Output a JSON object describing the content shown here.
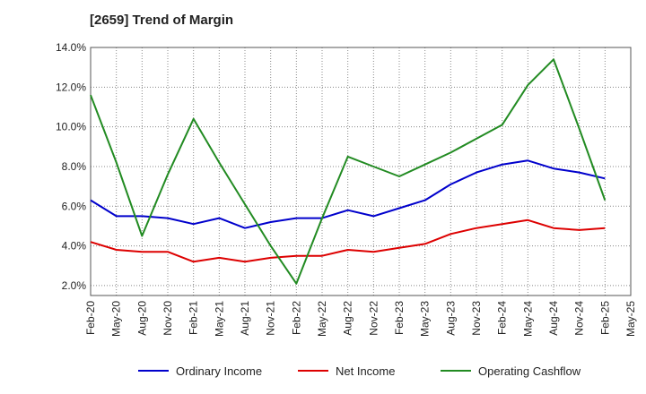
{
  "chart_data": {
    "type": "line",
    "title": "[2659]  Trend of Margin",
    "xlabel": "",
    "ylabel": "",
    "categories": [
      "Feb-20",
      "May-20",
      "Aug-20",
      "Nov-20",
      "Feb-21",
      "May-21",
      "Aug-21",
      "Nov-21",
      "Feb-22",
      "May-22",
      "Aug-22",
      "Nov-22",
      "Feb-23",
      "May-23",
      "Aug-23",
      "Nov-23",
      "Feb-24",
      "May-24",
      "Aug-24",
      "Nov-24",
      "Feb-25",
      "May-25"
    ],
    "ylim": [
      1.5,
      14.0
    ],
    "yticks": [
      {
        "value": 2.0,
        "label": "2.0%"
      },
      {
        "value": 4.0,
        "label": "4.0%"
      },
      {
        "value": 6.0,
        "label": "6.0%"
      },
      {
        "value": 8.0,
        "label": "8.0%"
      },
      {
        "value": 10.0,
        "label": "10.0%"
      },
      {
        "value": 12.0,
        "label": "12.0%"
      },
      {
        "value": 14.0,
        "label": "14.0%"
      }
    ],
    "grid": true,
    "legend_position": "bottom",
    "series": [
      {
        "name": "Ordinary Income",
        "color": "#0000cc",
        "values": [
          6.3,
          5.5,
          5.5,
          5.4,
          5.1,
          5.4,
          4.9,
          5.2,
          5.4,
          5.4,
          5.8,
          5.5,
          5.9,
          6.3,
          7.1,
          7.7,
          8.1,
          8.3,
          7.9,
          7.7,
          7.4,
          null
        ]
      },
      {
        "name": "Net Income",
        "color": "#dd0000",
        "values": [
          4.2,
          3.8,
          3.7,
          3.7,
          3.2,
          3.4,
          3.2,
          3.4,
          3.5,
          3.5,
          3.8,
          3.7,
          3.9,
          4.1,
          4.6,
          4.9,
          5.1,
          5.3,
          4.9,
          4.8,
          4.9,
          null
        ]
      },
      {
        "name": "Operating Cashflow",
        "color": "#228b22",
        "values": [
          11.6,
          8.2,
          4.5,
          7.6,
          10.4,
          8.2,
          6.1,
          4.0,
          2.1,
          5.4,
          8.5,
          8.0,
          7.5,
          8.1,
          8.7,
          9.4,
          10.1,
          12.1,
          13.4,
          9.9,
          6.3,
          null
        ]
      }
    ]
  }
}
